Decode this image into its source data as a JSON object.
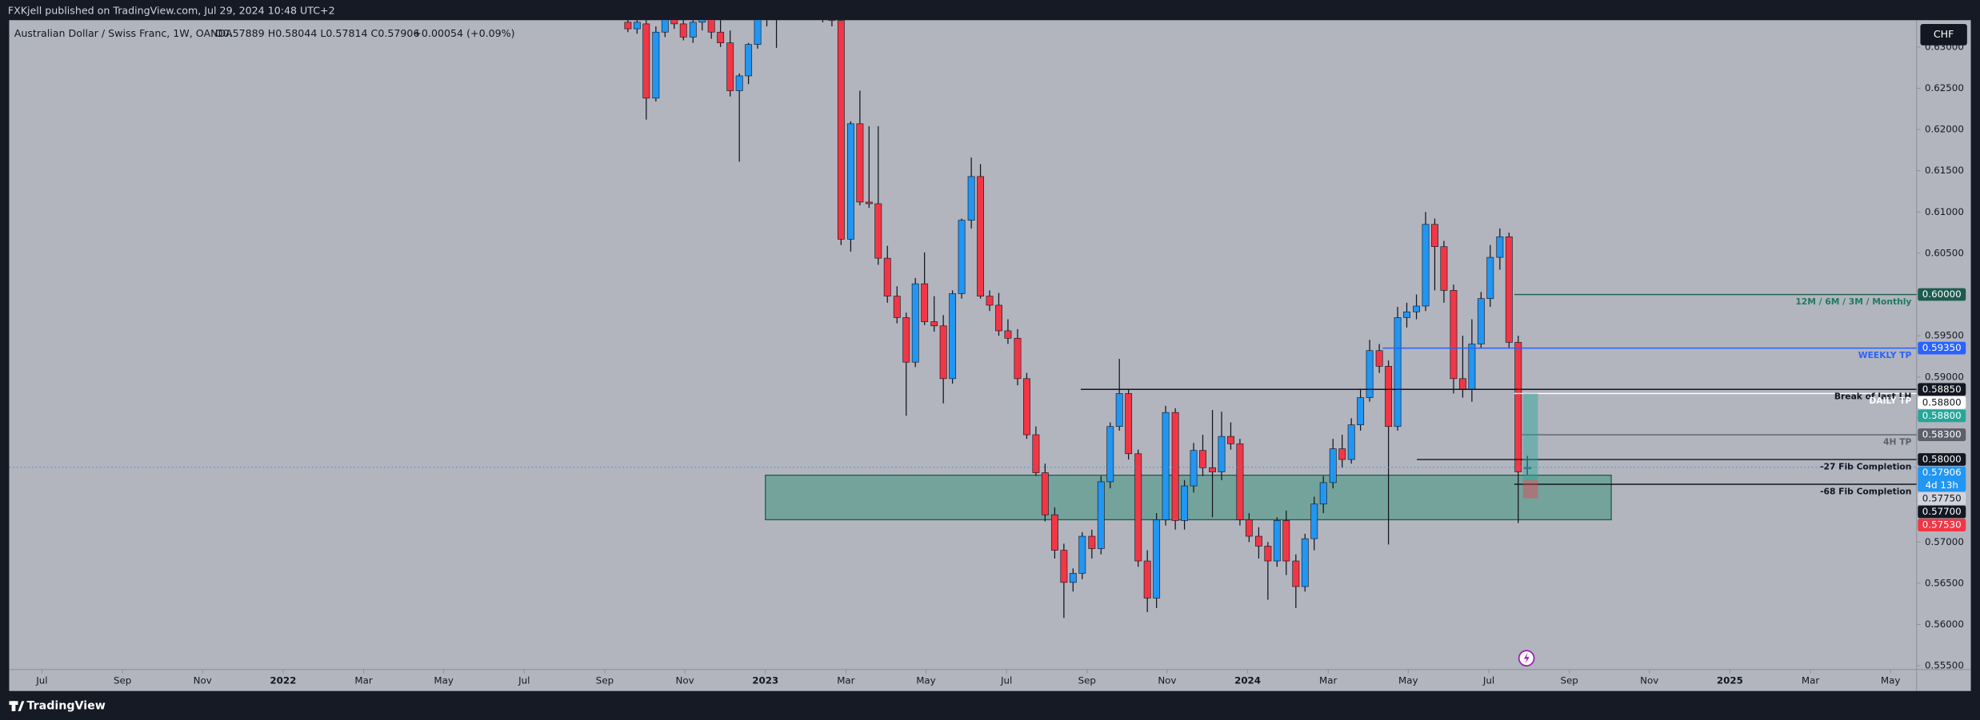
{
  "chart_data": {
    "type": "candlestick",
    "publisher_line": "FXKjell published on TradingView.com, Jul 29, 2024 10:48 UTC+2",
    "title": "Australian Dollar / Swiss Franc, 1W, OANDA",
    "ohlc_text": "O0.57889 H0.58044 L0.57814 C0.57906",
    "change_text": "+0.00054 (+0.09%)",
    "currency": "CHF",
    "brand": "TradingView",
    "up_color": "#2196f3",
    "down_color": "#f23645",
    "grid": false,
    "xlim": [
      2021.432,
      2025.387
    ],
    "xticks": [
      {
        "value": 2021.5,
        "label": "Jul"
      },
      {
        "value": 2021.667,
        "label": "Sep"
      },
      {
        "value": 2021.833,
        "label": "Nov"
      },
      2022,
      {
        "value": 2022.167,
        "label": "Mar"
      },
      {
        "value": 2022.333,
        "label": "May"
      },
      {
        "value": 2022.5,
        "label": "Jul"
      },
      {
        "value": 2022.667,
        "label": "Sep"
      },
      {
        "value": 2022.833,
        "label": "Nov"
      },
      2023,
      {
        "value": 2023.167,
        "label": "Mar"
      },
      {
        "value": 2023.333,
        "label": "May"
      },
      {
        "value": 2023.5,
        "label": "Jul"
      },
      {
        "value": 2023.667,
        "label": "Sep"
      },
      {
        "value": 2023.833,
        "label": "Nov"
      },
      2024,
      {
        "value": 2024.167,
        "label": "Mar"
      },
      {
        "value": 2024.333,
        "label": "May"
      },
      {
        "value": 2024.5,
        "label": "Jul"
      },
      {
        "value": 2024.667,
        "label": "Sep"
      },
      {
        "value": 2024.833,
        "label": "Nov"
      },
      2025,
      {
        "value": 2025.167,
        "label": "Mar"
      },
      {
        "value": 2025.333,
        "label": "May"
      }
    ],
    "ylim": [
      0.55454,
      0.63325
    ],
    "yticks": [
      {
        "value": 0.555,
        "label": "0.55500"
      },
      {
        "value": 0.56,
        "label": "0.56000"
      },
      {
        "value": 0.565,
        "label": "0.56500"
      },
      {
        "value": 0.57,
        "label": "0.57000"
      },
      {
        "value": 0.575,
        "label": "0.57500"
      },
      {
        "value": 0.58,
        "label": "0.58000"
      },
      {
        "value": 0.585,
        "label": "0.58500"
      },
      {
        "value": 0.59,
        "label": "0.59000"
      },
      {
        "value": 0.595,
        "label": "0.59500"
      },
      {
        "value": 0.6,
        "label": "0.60000"
      },
      {
        "value": 0.605,
        "label": "0.60500"
      },
      {
        "value": 0.61,
        "label": "0.61000"
      },
      {
        "value": 0.615,
        "label": "0.61500"
      },
      {
        "value": 0.62,
        "label": "0.62000"
      },
      {
        "value": 0.625,
        "label": "0.62500"
      },
      {
        "value": 0.63,
        "label": "0.63000"
      }
    ],
    "x": [
      2022.715,
      2022.734,
      2022.753,
      2022.773,
      2022.792,
      2022.811,
      2022.83,
      2022.85,
      2022.869,
      2022.888,
      2022.907,
      2022.927,
      2022.946,
      2022.965,
      2022.984,
      2023.003,
      2023.023,
      2023.042,
      2023.061,
      2023.08,
      2023.1,
      2023.119,
      2023.138,
      2023.157,
      2023.177,
      2023.196,
      2023.215,
      2023.234,
      2023.253,
      2023.273,
      2023.292,
      2023.311,
      2023.33,
      2023.35,
      2023.369,
      2023.388,
      2023.407,
      2023.427,
      2023.446,
      2023.465,
      2023.484,
      2023.503,
      2023.523,
      2023.542,
      2023.561,
      2023.58,
      2023.6,
      2023.619,
      2023.638,
      2023.657,
      2023.677,
      2023.696,
      2023.715,
      2023.734,
      2023.753,
      2023.773,
      2023.792,
      2023.811,
      2023.83,
      2023.85,
      2023.869,
      2023.888,
      2023.907,
      2023.927,
      2023.946,
      2023.965,
      2023.984,
      2024.003,
      2024.023,
      2024.042,
      2024.061,
      2024.08,
      2024.1,
      2024.119,
      2024.138,
      2024.157,
      2024.177,
      2024.196,
      2024.215,
      2024.234,
      2024.253,
      2024.273,
      2024.292,
      2024.311,
      2024.33,
      2024.35,
      2024.369,
      2024.388,
      2024.407,
      2024.427,
      2024.446,
      2024.465,
      2024.484,
      2024.503,
      2024.523,
      2024.542,
      2024.561,
      2024.58
    ],
    "open": [
      0.633,
      0.6322,
      0.6328,
      0.6238,
      0.6318,
      0.6336,
      0.6328,
      0.6312,
      0.633,
      0.634,
      0.6318,
      0.6305,
      0.6247,
      0.6265,
      0.6303,
      0.6333,
      0.6345,
      0.635,
      0.636,
      0.6352,
      0.6362,
      0.635,
      0.6338,
      0.6332,
      0.6067,
      0.6207,
      0.6112,
      0.611,
      0.6044,
      0.5998,
      0.5972,
      0.5918,
      0.6013,
      0.5967,
      0.5962,
      0.5898,
      0.6001,
      0.609,
      0.6143,
      0.5998,
      0.5987,
      0.5956,
      0.5947,
      0.5898,
      0.583,
      0.5784,
      0.5733,
      0.569,
      0.5651,
      0.5662,
      0.5707,
      0.5692,
      0.5773,
      0.584,
      0.588,
      0.5807,
      0.5677,
      0.5632,
      0.5727,
      0.5857,
      0.5726,
      0.5768,
      0.5811,
      0.579,
      0.5785,
      0.5828,
      0.5819,
      0.5727,
      0.5707,
      0.5695,
      0.5677,
      0.5726,
      0.5677,
      0.5646,
      0.5704,
      0.5746,
      0.5772,
      0.5813,
      0.58,
      0.5842,
      0.5875,
      0.5932,
      0.5913,
      0.584,
      0.5972,
      0.5979,
      0.5986,
      0.6085,
      0.6058,
      0.6005,
      0.5898,
      0.5885,
      0.594,
      0.5995,
      0.6045,
      0.607,
      0.5942,
      0.57889
    ],
    "high": [
      0.6335,
      0.6333,
      0.6334,
      0.6325,
      0.634,
      0.6345,
      0.634,
      0.6338,
      0.6345,
      0.6348,
      0.6335,
      0.632,
      0.6268,
      0.6305,
      0.634,
      0.6352,
      0.6358,
      0.6368,
      0.6375,
      0.637,
      0.6372,
      0.636,
      0.6345,
      0.634,
      0.621,
      0.6247,
      0.6204,
      0.6204,
      0.6059,
      0.601,
      0.5978,
      0.602,
      0.6051,
      0.5998,
      0.5975,
      0.6005,
      0.6092,
      0.6166,
      0.6158,
      0.6005,
      0.6002,
      0.597,
      0.5958,
      0.5905,
      0.584,
      0.5795,
      0.5742,
      0.5698,
      0.5668,
      0.5712,
      0.5715,
      0.578,
      0.5845,
      0.5922,
      0.5885,
      0.5812,
      0.569,
      0.5735,
      0.5865,
      0.5862,
      0.5775,
      0.582,
      0.583,
      0.586,
      0.5858,
      0.5845,
      0.5825,
      0.5735,
      0.5718,
      0.57,
      0.573,
      0.5738,
      0.5685,
      0.571,
      0.5755,
      0.578,
      0.5825,
      0.583,
      0.585,
      0.5885,
      0.5945,
      0.594,
      0.592,
      0.5985,
      0.599,
      0.6,
      0.61,
      0.6092,
      0.6065,
      0.6012,
      0.595,
      0.597,
      0.6003,
      0.606,
      0.608,
      0.6075,
      0.595,
      0.58044
    ],
    "low": [
      0.6318,
      0.6316,
      0.6212,
      0.6234,
      0.6312,
      0.6322,
      0.6308,
      0.6305,
      0.632,
      0.631,
      0.63,
      0.624,
      0.6161,
      0.6255,
      0.6298,
      0.6325,
      0.6299,
      0.6338,
      0.6345,
      0.634,
      0.6345,
      0.633,
      0.6325,
      0.606,
      0.6052,
      0.6108,
      0.6105,
      0.6036,
      0.599,
      0.5965,
      0.5853,
      0.5912,
      0.5963,
      0.5955,
      0.5868,
      0.5892,
      0.5995,
      0.608,
      0.5995,
      0.598,
      0.595,
      0.594,
      0.589,
      0.5825,
      0.578,
      0.5725,
      0.568,
      0.5608,
      0.564,
      0.5655,
      0.568,
      0.5685,
      0.5765,
      0.5835,
      0.58,
      0.567,
      0.5615,
      0.562,
      0.572,
      0.5715,
      0.5715,
      0.576,
      0.578,
      0.573,
      0.5775,
      0.5812,
      0.572,
      0.57,
      0.568,
      0.563,
      0.567,
      0.566,
      0.562,
      0.564,
      0.569,
      0.5735,
      0.5765,
      0.579,
      0.5795,
      0.5835,
      0.587,
      0.5905,
      0.5697,
      0.5835,
      0.596,
      0.597,
      0.598,
      0.6005,
      0.599,
      0.588,
      0.5875,
      0.587,
      0.5935,
      0.5985,
      0.603,
      0.5935,
      0.5723,
      0.57814
    ],
    "close": [
      0.6322,
      0.633,
      0.6238,
      0.6318,
      0.6336,
      0.6328,
      0.6312,
      0.633,
      0.634,
      0.6318,
      0.6305,
      0.6247,
      0.6265,
      0.6303,
      0.6333,
      0.6345,
      0.635,
      0.636,
      0.6352,
      0.6362,
      0.635,
      0.6338,
      0.6332,
      0.6067,
      0.6207,
      0.6112,
      0.611,
      0.6044,
      0.5998,
      0.5972,
      0.5918,
      0.6013,
      0.5967,
      0.5962,
      0.5898,
      0.6001,
      0.609,
      0.6143,
      0.5998,
      0.5987,
      0.5956,
      0.5947,
      0.5898,
      0.583,
      0.5784,
      0.5733,
      0.569,
      0.5651,
      0.5662,
      0.5707,
      0.5692,
      0.5773,
      0.584,
      0.588,
      0.5807,
      0.5677,
      0.5632,
      0.5727,
      0.5857,
      0.5726,
      0.5768,
      0.5811,
      0.579,
      0.5785,
      0.5828,
      0.5819,
      0.5727,
      0.5707,
      0.5695,
      0.5677,
      0.5726,
      0.5677,
      0.5646,
      0.5704,
      0.5746,
      0.5772,
      0.5813,
      0.58,
      0.5842,
      0.5875,
      0.5932,
      0.5913,
      0.584,
      0.5972,
      0.5979,
      0.5986,
      0.6085,
      0.6058,
      0.6005,
      0.5898,
      0.5885,
      0.594,
      0.5995,
      0.6045,
      0.607,
      0.5942,
      0.5785,
      0.57906
    ],
    "zones": [
      {
        "x": [
          2023.0,
          2024.754
        ],
        "y": [
          0.5727,
          0.5781
        ],
        "color": "#5f9e8f",
        "border": "#1e5b4f"
      }
    ],
    "price_lines": [
      {
        "value": 0.6,
        "label": "0.60000",
        "text": "12M / 6M / 3M / Monthly",
        "color": "#1e5b4f",
        "text_color": "#1e7a5f",
        "x_start": 2024.553
      },
      {
        "value": 0.5935,
        "label": "0.59350",
        "text": "WEEKLY TP",
        "color": "#2962ff",
        "text_color": "#2962ff",
        "x_start": 2024.28
      },
      {
        "value": 0.5885,
        "label": "0.58850",
        "text": "Break of last LH",
        "color": "#131722",
        "text_color": "#131722",
        "x_start": 2023.654
      },
      {
        "value": 0.588,
        "label": "0.58800",
        "text": "DAILY TP",
        "color": "#ffffff",
        "text_color": "#ffffff",
        "x_start": 2024.553
      },
      {
        "value": 0.583,
        "label": "0.58300",
        "text": "4H TP",
        "color": "#5d606b",
        "text_color": "#5d606b",
        "x_start": 2024.569
      },
      {
        "value": 0.58,
        "label": "0.58000",
        "text": "-27 Fib Completion",
        "color": "#131722",
        "text_color": "#131722",
        "x_start": 2024.351
      },
      {
        "value": 0.577,
        "label": "0.57700",
        "text": "-68 Fib Completion",
        "color": "#131722",
        "text_color": "#131722",
        "x_start": 2024.553
      }
    ],
    "position": {
      "x": [
        2024.571,
        2024.602
      ],
      "entry": 0.5775,
      "target": 0.588,
      "stop": 0.5753,
      "entry_label": "0.57750",
      "target_label": "0.58800",
      "stop_label": "0.57530",
      "profit_color": "#26a69a",
      "loss_color": "#f23645",
      "entry_color": "#d1d4dc"
    },
    "last": {
      "value": 0.57906,
      "label": "0.57906",
      "countdown": "4d 13h",
      "color": "#2196f3"
    }
  }
}
